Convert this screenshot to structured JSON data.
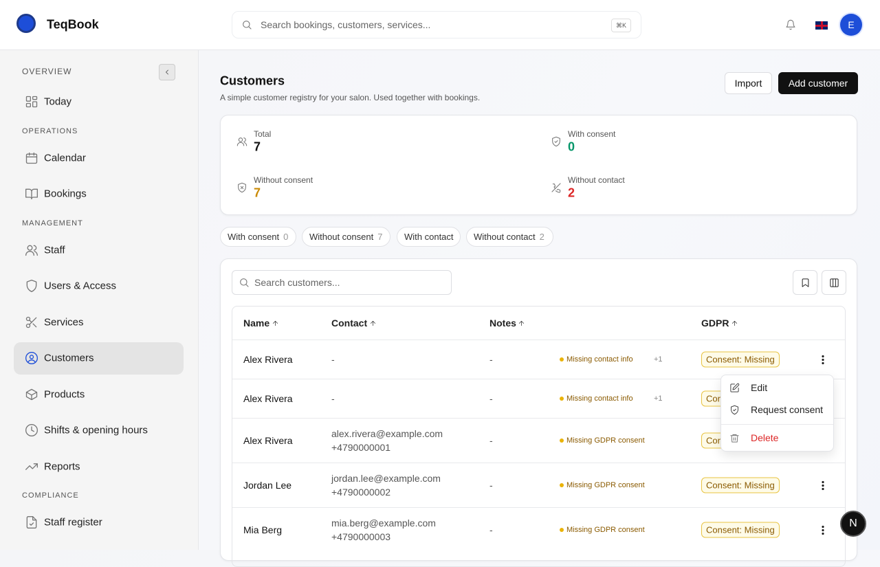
{
  "header": {
    "brand": "TeqBook",
    "search_placeholder": "Search bookings, customers, services...",
    "shortcut": "⌘K",
    "avatar": "E"
  },
  "sidebar": {
    "sections": [
      {
        "title": "OVERVIEW",
        "items": [
          {
            "label": "Today"
          }
        ]
      },
      {
        "title": "OPERATIONS",
        "items": [
          {
            "label": "Calendar"
          },
          {
            "label": "Bookings"
          }
        ]
      },
      {
        "title": "MANAGEMENT",
        "items": [
          {
            "label": "Staff"
          },
          {
            "label": "Users & Access"
          },
          {
            "label": "Services"
          },
          {
            "label": "Customers",
            "active": true
          },
          {
            "label": "Products"
          },
          {
            "label": "Shifts & opening hours"
          },
          {
            "label": "Reports"
          }
        ]
      },
      {
        "title": "COMPLIANCE",
        "items": [
          {
            "label": "Staff register"
          }
        ]
      }
    ]
  },
  "page": {
    "title": "Customers",
    "subtitle": "A simple customer registry for your salon. Used together with bookings.",
    "actions": [
      "Import",
      "Add customer"
    ]
  },
  "stats": [
    {
      "label": "Total",
      "value": 7,
      "color": "#111111"
    },
    {
      "label": "With consent",
      "value": 0,
      "color": "#059669"
    },
    {
      "label": "Without consent",
      "value": 7,
      "color": "#ca8a04"
    },
    {
      "label": "Without contact",
      "value": 2,
      "color": "#dc2626"
    }
  ],
  "filters": [
    {
      "label": "With consent",
      "count": 0
    },
    {
      "label": "Without consent",
      "count": 7
    },
    {
      "label": "With contact"
    },
    {
      "label": "Without contact",
      "count": 2
    }
  ],
  "table": {
    "search_placeholder": "Search customers...",
    "columns": [
      "Name",
      "Contact",
      "Notes",
      "GDPR"
    ],
    "rows": [
      {
        "name": "Alex Rivera",
        "contact": [
          "-"
        ],
        "notes": "-",
        "issue": "Missing contact info",
        "extra": "+1",
        "gdpr": "Consent: Missing"
      },
      {
        "name": "Alex Rivera",
        "contact": [
          "-"
        ],
        "notes": "-",
        "issue": "Missing contact info",
        "extra": "+1",
        "gdpr": "Consent: Missing"
      },
      {
        "name": "Alex Rivera",
        "contact": [
          "alex.rivera@example.com",
          "+4790000001"
        ],
        "notes": "-",
        "issue": "Missing GDPR consent",
        "gdpr": "Consent: Missing"
      },
      {
        "name": "Jordan Lee",
        "contact": [
          "jordan.lee@example.com",
          "+4790000002"
        ],
        "notes": "-",
        "issue": "Missing GDPR consent",
        "gdpr": "Consent: Missing"
      },
      {
        "name": "Mia Berg",
        "contact": [
          "mia.berg@example.com",
          "+4790000003"
        ],
        "notes": "-",
        "issue": "Missing GDPR consent",
        "gdpr": "Consent: Missing"
      }
    ]
  },
  "menu": {
    "items": [
      "Edit",
      "Request consent",
      "Delete"
    ]
  },
  "fab": "N"
}
